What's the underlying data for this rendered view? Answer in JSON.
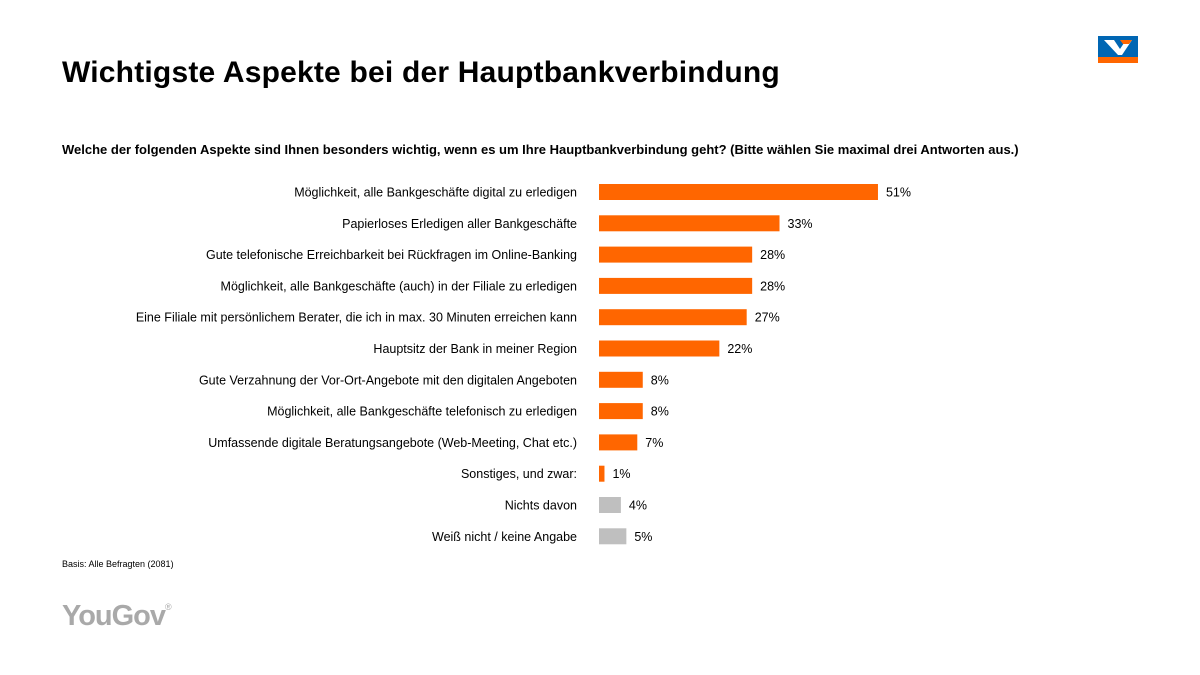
{
  "header": {
    "title": "Wichtigste Aspekte bei der Hauptbankverbindung",
    "question": "Welche der folgenden Aspekte sind Ihnen besonders wichtig, wenn es um Ihre Hauptbankverbindung geht? (Bitte wählen Sie maximal drei Antworten aus.)"
  },
  "logo": {
    "icon": "volksbank-raiffeisenbank-logo-icon",
    "blue": "#0066b3",
    "orange": "#ff6600"
  },
  "footer": {
    "basis": "Basis: Alle Befragten (2081)",
    "brand": "YouGov",
    "brand_mark": "®"
  },
  "colors": {
    "main": "#ff6600",
    "other": "#bfbfbf"
  },
  "chart_data": {
    "type": "bar",
    "orientation": "horizontal",
    "title": "Wichtigste Aspekte bei der Hauptbankverbindung",
    "categories": [
      "Möglichkeit, alle Bankgeschäfte digital zu erledigen",
      "Papierloses Erledigen aller Bankgeschäfte",
      "Gute telefonische Erreichbarkeit bei Rückfragen im Online-Banking",
      "Möglichkeit, alle Bankgeschäfte (auch) in der Filiale zu erledigen",
      "Eine Filiale mit persönlichem Berater, die ich in max. 30 Minuten erreichen kann",
      "Hauptsitz der Bank in meiner Region",
      "Gute Verzahnung der Vor-Ort-Angebote mit den digitalen Angeboten",
      "Möglichkeit, alle Bankgeschäfte telefonisch zu erledigen",
      "Umfassende digitale Beratungsangebote (Web-Meeting, Chat etc.)",
      "Sonstiges, und zwar:",
      "Nichts davon",
      "Weiß nicht / keine Angabe"
    ],
    "values": [
      51,
      33,
      28,
      28,
      27,
      22,
      8,
      8,
      7,
      1,
      4,
      5
    ],
    "labels": [
      "51%",
      "33%",
      "28%",
      "28%",
      "27%",
      "22%",
      "8%",
      "8%",
      "7%",
      "1%",
      "4%",
      "5%"
    ],
    "series_type": [
      "main",
      "main",
      "main",
      "main",
      "main",
      "main",
      "main",
      "main",
      "main",
      "main",
      "other",
      "other"
    ],
    "unit": "%",
    "xlim": [
      0,
      100
    ],
    "grid": false,
    "legend": "none"
  }
}
